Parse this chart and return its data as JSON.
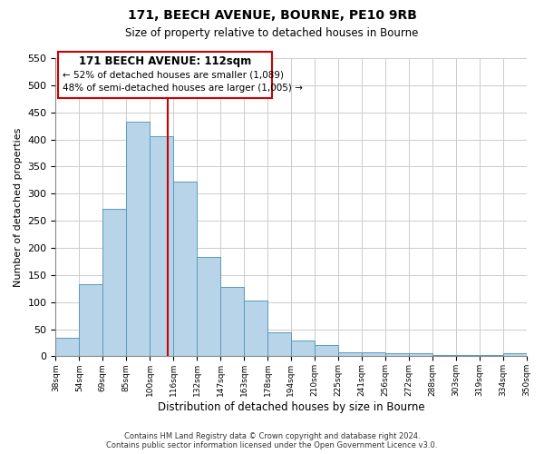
{
  "title": "171, BEECH AVENUE, BOURNE, PE10 9RB",
  "subtitle": "Size of property relative to detached houses in Bourne",
  "xlabel": "Distribution of detached houses by size in Bourne",
  "ylabel": "Number of detached properties",
  "bar_color": "#b8d4e8",
  "bar_edge_color": "#5a9abf",
  "vline_color": "#cc0000",
  "vline_x_data": 4.75,
  "annotation_title": "171 BEECH AVENUE: 112sqm",
  "annotation_line1": "← 52% of detached houses are smaller (1,089)",
  "annotation_line2": "48% of semi-detached houses are larger (1,005) →",
  "categories": [
    "38sqm",
    "54sqm",
    "69sqm",
    "85sqm",
    "100sqm",
    "116sqm",
    "132sqm",
    "147sqm",
    "163sqm",
    "178sqm",
    "194sqm",
    "210sqm",
    "225sqm",
    "241sqm",
    "256sqm",
    "272sqm",
    "288sqm",
    "303sqm",
    "319sqm",
    "334sqm",
    "350sqm"
  ],
  "values": [
    35,
    133,
    272,
    432,
    406,
    323,
    183,
    128,
    103,
    45,
    30,
    20,
    8,
    8,
    5,
    5,
    3,
    3,
    3,
    5
  ],
  "ylim": [
    0,
    550
  ],
  "yticks": [
    0,
    50,
    100,
    150,
    200,
    250,
    300,
    350,
    400,
    450,
    500,
    550
  ],
  "footer1": "Contains HM Land Registry data © Crown copyright and database right 2024.",
  "footer2": "Contains public sector information licensed under the Open Government Licence v3.0.",
  "bg_color": "#ffffff",
  "grid_color": "#cccccc"
}
